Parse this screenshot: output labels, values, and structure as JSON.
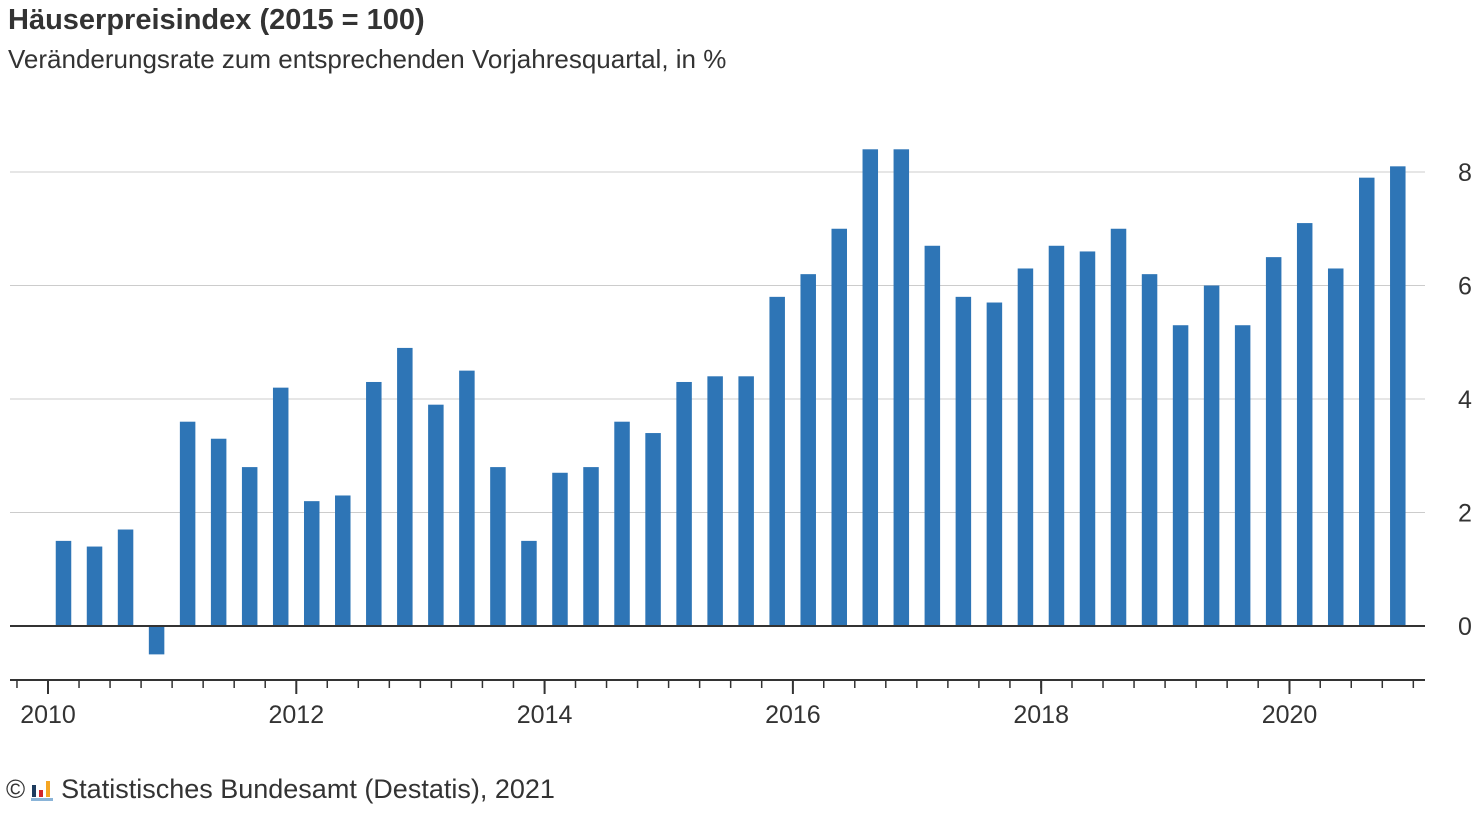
{
  "header": {
    "title": "Häuserpreisindex (2015 = 100)",
    "subtitle": "Veränderungsrate zum entsprechenden Vorjahresquartal, in %"
  },
  "footer": {
    "copyright_symbol": "©",
    "logo_icon": "destatis-logo-icon",
    "source": "Statistisches Bundesamt (Destatis), 2021"
  },
  "colors": {
    "bar": "#2e75b6",
    "grid": "#cccccc",
    "axis": "#333333",
    "text": "#333333"
  },
  "chart_data": {
    "type": "bar",
    "title": "Häuserpreisindex (2015 = 100)",
    "subtitle": "Veränderungsrate zum entsprechenden Vorjahresquartal, in %",
    "xlabel": "",
    "ylabel": "",
    "y_axis_side": "right",
    "ylim": [
      -0.9,
      8.8
    ],
    "yticks": [
      0,
      2,
      4,
      6,
      8
    ],
    "grid": true,
    "xlim": [
      2010.0,
      2021.0
    ],
    "x_tick_labels": [
      "2010",
      "2012",
      "2014",
      "2016",
      "2018",
      "2020"
    ],
    "x_tick_years": [
      2010,
      2012,
      2014,
      2016,
      2018,
      2020
    ],
    "categories": [
      "2010 Q1",
      "2010 Q2",
      "2010 Q3",
      "2010 Q4",
      "2011 Q1",
      "2011 Q2",
      "2011 Q3",
      "2011 Q4",
      "2012 Q1",
      "2012 Q2",
      "2012 Q3",
      "2012 Q4",
      "2013 Q1",
      "2013 Q2",
      "2013 Q3",
      "2013 Q4",
      "2014 Q1",
      "2014 Q2",
      "2014 Q3",
      "2014 Q4",
      "2015 Q1",
      "2015 Q2",
      "2015 Q3",
      "2015 Q4",
      "2016 Q1",
      "2016 Q2",
      "2016 Q3",
      "2016 Q4",
      "2017 Q1",
      "2017 Q2",
      "2017 Q3",
      "2017 Q4",
      "2018 Q1",
      "2018 Q2",
      "2018 Q3",
      "2018 Q4",
      "2019 Q1",
      "2019 Q2",
      "2019 Q3",
      "2019 Q4",
      "2020 Q1",
      "2020 Q2",
      "2020 Q3",
      "2020 Q4"
    ],
    "series": [
      {
        "name": "Häuserpreisindex",
        "values": [
          1.5,
          1.4,
          1.7,
          -0.5,
          3.6,
          3.3,
          2.8,
          4.2,
          2.2,
          2.3,
          4.3,
          4.9,
          3.9,
          4.5,
          2.8,
          1.5,
          2.7,
          2.8,
          3.6,
          3.4,
          4.3,
          4.4,
          4.4,
          5.8,
          6.2,
          7.0,
          8.4,
          8.4,
          6.7,
          5.8,
          5.7,
          6.3,
          6.7,
          6.6,
          7.0,
          6.2,
          5.3,
          6.0,
          5.3,
          6.5,
          7.1,
          6.3,
          7.9,
          8.1
        ]
      }
    ]
  }
}
